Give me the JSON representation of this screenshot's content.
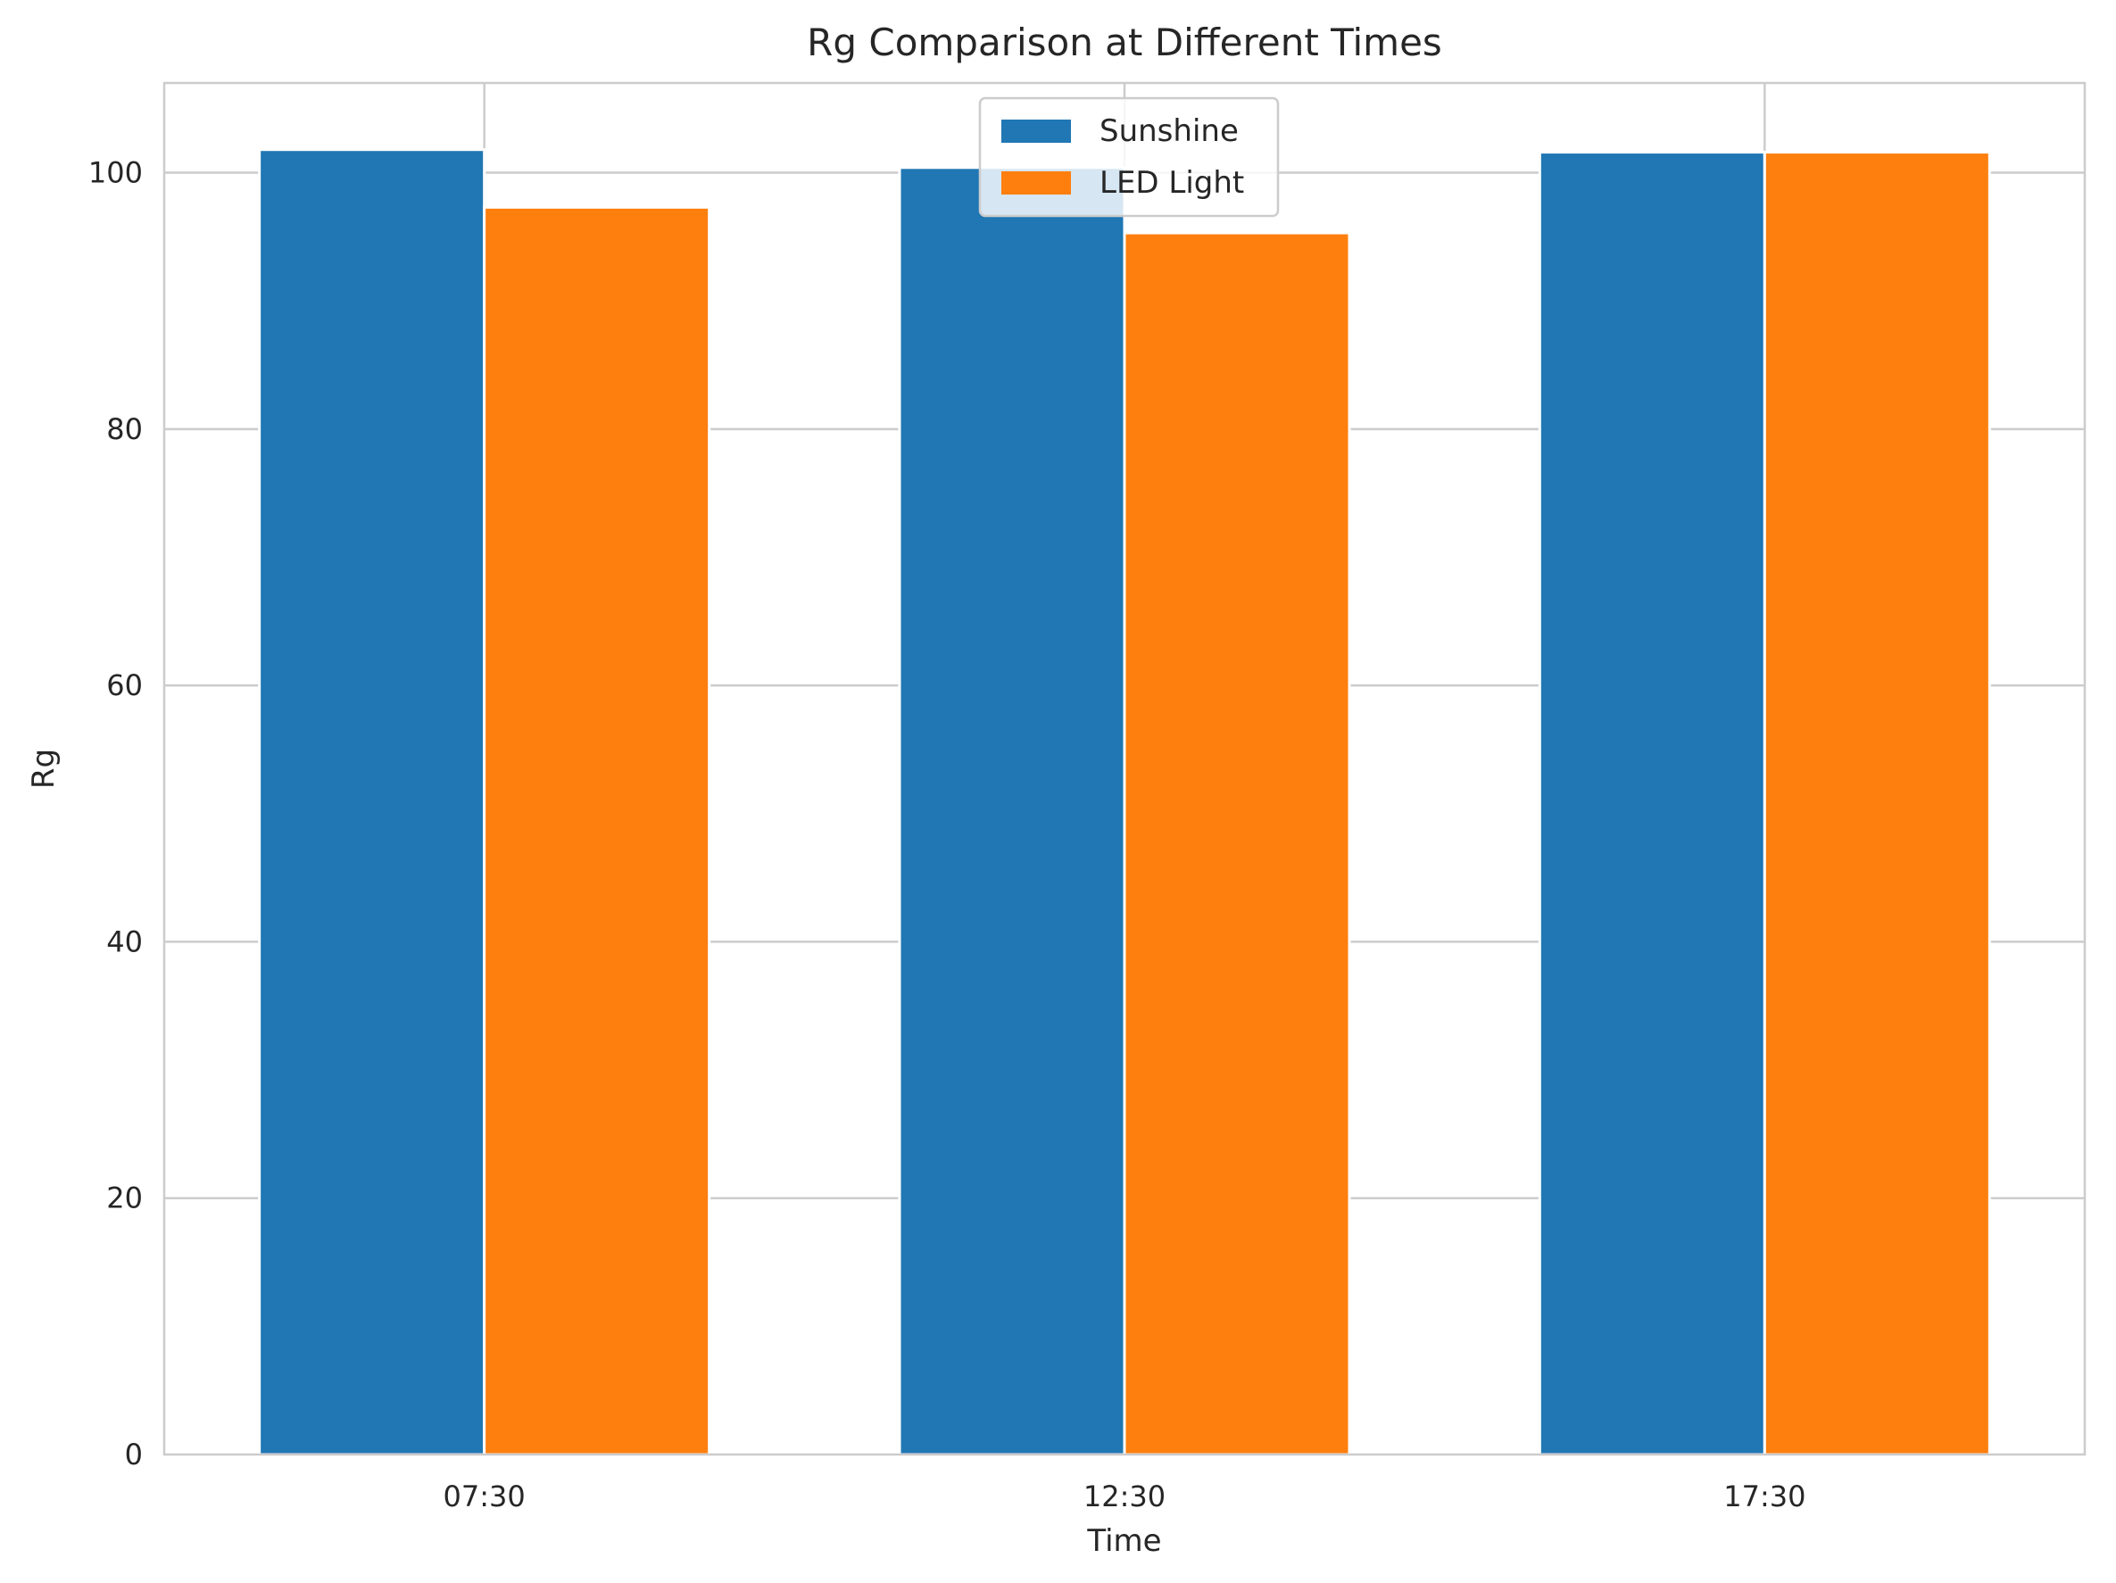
{
  "chart_data": {
    "type": "bar",
    "title": "Rg Comparison at Different Times",
    "xlabel": "Time",
    "ylabel": "Rg",
    "categories": [
      "07:30",
      "12:30",
      "17:30"
    ],
    "series": [
      {
        "name": "Sunshine",
        "values": [
          101.8,
          100.4,
          101.6
        ],
        "color": "#2077b4"
      },
      {
        "name": "LED Light",
        "values": [
          97.3,
          95.3,
          101.6
        ],
        "color": "#ff7f0e"
      }
    ],
    "ylim": [
      0,
      107
    ],
    "yticks": [
      0,
      20,
      40,
      60,
      80,
      100
    ],
    "grid": true,
    "legend_position": "top-center"
  }
}
